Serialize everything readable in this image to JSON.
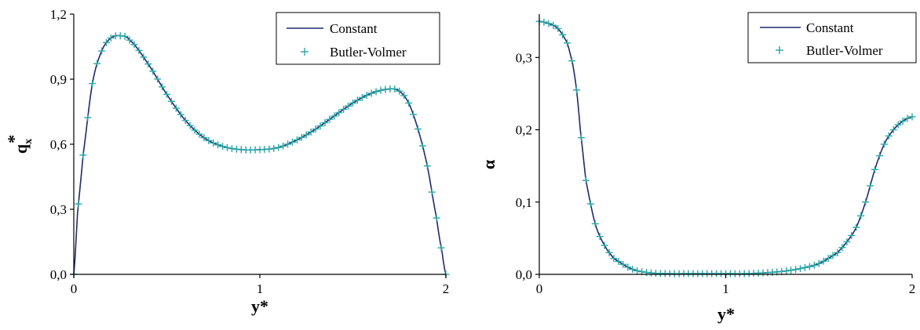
{
  "chart_data": [
    {
      "type": "line",
      "xlabel": "y*",
      "ylabel": "q",
      "ylabel_sub": "x",
      "ylabel_sup": "*",
      "xlim": [
        0,
        2
      ],
      "ylim": [
        0,
        1.2
      ],
      "xticks": [
        "0",
        "1",
        "2"
      ],
      "yticks": [
        "0,0",
        "0,3",
        "0,6",
        "0,9",
        "1,2"
      ],
      "legend_position": "top-right",
      "series": [
        {
          "name": "Constant",
          "style": "line",
          "color": "#1f2a6e",
          "x": [
            0,
            0.02,
            0.05,
            0.1,
            0.15,
            0.2,
            0.25,
            0.3,
            0.4,
            0.5,
            0.6,
            0.7,
            0.8,
            0.9,
            1.0,
            1.1,
            1.2,
            1.3,
            1.4,
            1.5,
            1.6,
            1.7,
            1.75,
            1.8,
            1.85,
            1.9,
            1.95,
            1.98,
            2.0
          ],
          "y": [
            0,
            0.28,
            0.55,
            0.88,
            1.03,
            1.09,
            1.1,
            1.08,
            0.97,
            0.83,
            0.71,
            0.63,
            0.59,
            0.575,
            0.575,
            0.585,
            0.62,
            0.67,
            0.73,
            0.79,
            0.835,
            0.855,
            0.845,
            0.79,
            0.67,
            0.5,
            0.26,
            0.1,
            0
          ]
        },
        {
          "name": "Butler-Volmer",
          "style": "markers",
          "color": "#2aa6a6",
          "x": [
            0,
            0.02,
            0.05,
            0.1,
            0.15,
            0.2,
            0.25,
            0.3,
            0.4,
            0.5,
            0.6,
            0.7,
            0.8,
            0.9,
            1.0,
            1.1,
            1.2,
            1.3,
            1.4,
            1.5,
            1.6,
            1.7,
            1.75,
            1.8,
            1.85,
            1.9,
            1.95,
            1.98,
            2.0
          ],
          "y": [
            0,
            0.28,
            0.55,
            0.88,
            1.03,
            1.09,
            1.1,
            1.08,
            0.97,
            0.83,
            0.71,
            0.63,
            0.59,
            0.575,
            0.575,
            0.585,
            0.62,
            0.67,
            0.73,
            0.79,
            0.835,
            0.855,
            0.845,
            0.79,
            0.67,
            0.5,
            0.26,
            0.1,
            0
          ]
        }
      ]
    },
    {
      "type": "line",
      "xlabel": "y*",
      "ylabel": "α",
      "xlim": [
        0,
        2
      ],
      "ylim": [
        0,
        0.36
      ],
      "xticks": [
        "0",
        "1",
        "2"
      ],
      "yticks": [
        "0,0",
        "0,1",
        "0,2",
        "0,3"
      ],
      "legend_position": "top-right",
      "series": [
        {
          "name": "Constant",
          "style": "line",
          "color": "#1f2a6e",
          "x": [
            0,
            0.05,
            0.1,
            0.15,
            0.18,
            0.2,
            0.22,
            0.25,
            0.3,
            0.35,
            0.4,
            0.5,
            0.6,
            0.7,
            0.8,
            0.9,
            1.0,
            1.1,
            1.2,
            1.3,
            1.4,
            1.5,
            1.6,
            1.65,
            1.7,
            1.75,
            1.8,
            1.85,
            1.9,
            1.95,
            2.0
          ],
          "y": [
            0.35,
            0.347,
            0.34,
            0.32,
            0.29,
            0.255,
            0.2,
            0.13,
            0.07,
            0.04,
            0.022,
            0.007,
            0.002,
            0.001,
            0.001,
            0.001,
            0.001,
            0.001,
            0.002,
            0.004,
            0.008,
            0.015,
            0.03,
            0.045,
            0.065,
            0.1,
            0.145,
            0.18,
            0.2,
            0.212,
            0.218
          ]
        },
        {
          "name": "Butler-Volmer",
          "style": "markers",
          "color": "#2aa6a6",
          "x": [
            0,
            0.05,
            0.1,
            0.15,
            0.18,
            0.2,
            0.22,
            0.25,
            0.3,
            0.35,
            0.4,
            0.5,
            0.6,
            0.7,
            0.8,
            0.9,
            1.0,
            1.1,
            1.2,
            1.3,
            1.4,
            1.5,
            1.6,
            1.65,
            1.7,
            1.75,
            1.8,
            1.85,
            1.9,
            1.95,
            2.0
          ],
          "y": [
            0.35,
            0.347,
            0.34,
            0.32,
            0.29,
            0.255,
            0.2,
            0.13,
            0.07,
            0.04,
            0.022,
            0.007,
            0.002,
            0.001,
            0.001,
            0.001,
            0.001,
            0.001,
            0.002,
            0.004,
            0.008,
            0.015,
            0.03,
            0.045,
            0.065,
            0.1,
            0.145,
            0.18,
            0.2,
            0.212,
            0.218
          ]
        }
      ]
    }
  ]
}
